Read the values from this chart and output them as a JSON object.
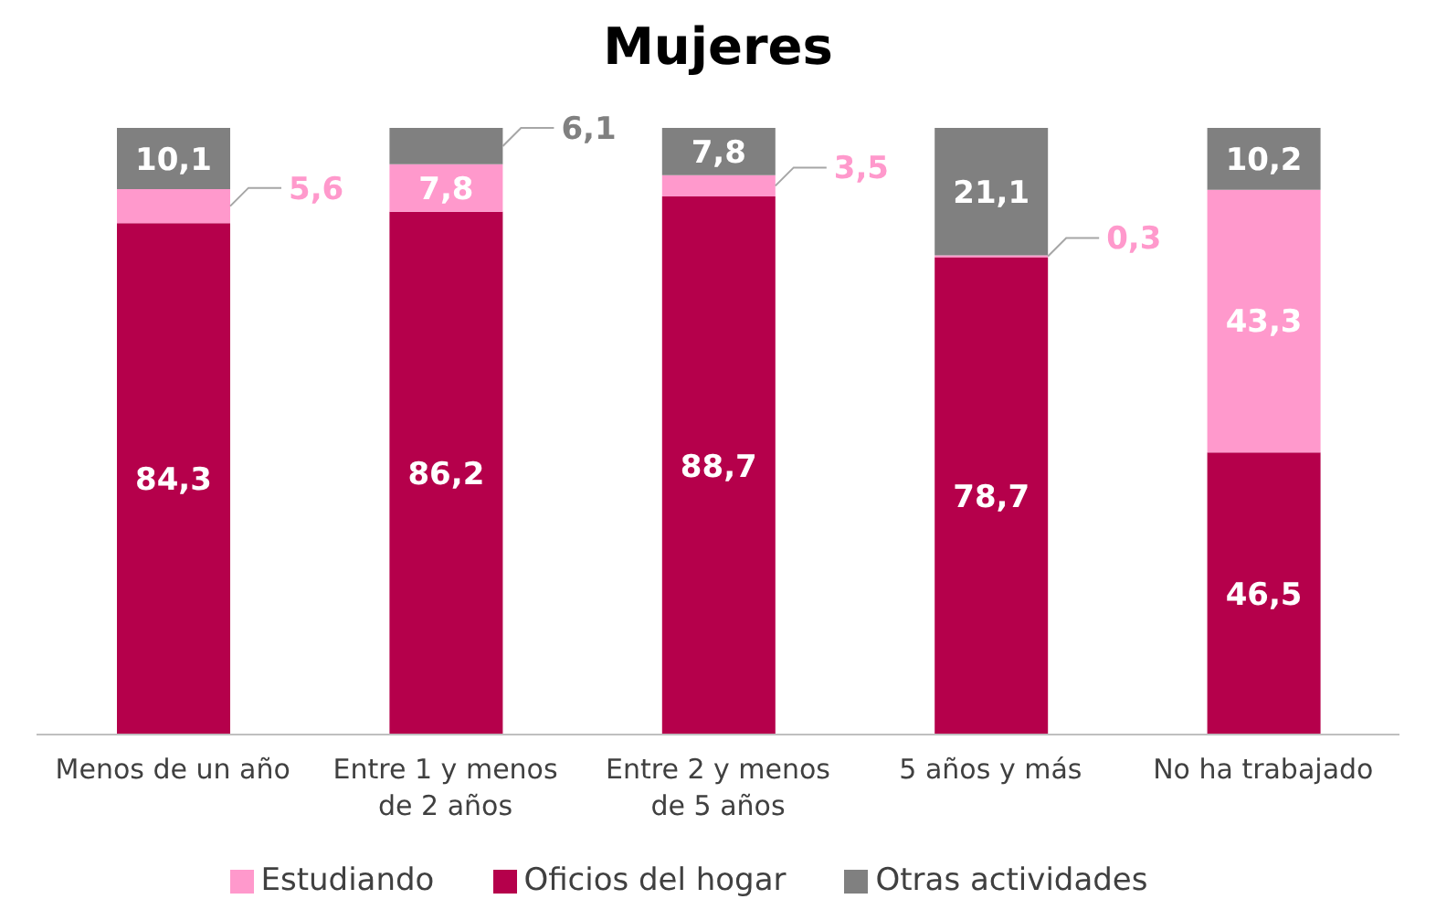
{
  "chart_data": {
    "type": "bar",
    "title": "Mujeres",
    "stacked": true,
    "legend": "bottom",
    "tick_labels": "x",
    "grid": false,
    "ylim": [
      0,
      100
    ],
    "categories": [
      "Menos de un año",
      "Entre 1 y menos de 2 años",
      "Entre 2 y menos de 5 años",
      "5 años y más",
      "No ha trabajado"
    ],
    "series": [
      {
        "name": "Oficios del hogar",
        "color": "#b5004b",
        "values": [
          84.3,
          86.2,
          88.7,
          78.7,
          46.5
        ],
        "value_labels": [
          "84,3",
          "86,2",
          "88,7",
          "78,7",
          "46,5"
        ]
      },
      {
        "name": "Estudiando",
        "color": "#ff99cc",
        "values": [
          5.6,
          7.8,
          3.5,
          0.3,
          43.3
        ],
        "value_labels": [
          "5,6",
          "7,8",
          "3,5",
          "0,3",
          "43,3"
        ]
      },
      {
        "name": "Otras actividades",
        "color": "#808080",
        "values": [
          10.1,
          6.1,
          7.8,
          21.1,
          10.2
        ],
        "value_labels": [
          "10,1",
          "6,1",
          "7,8",
          "21,1",
          "10,2"
        ]
      }
    ]
  }
}
